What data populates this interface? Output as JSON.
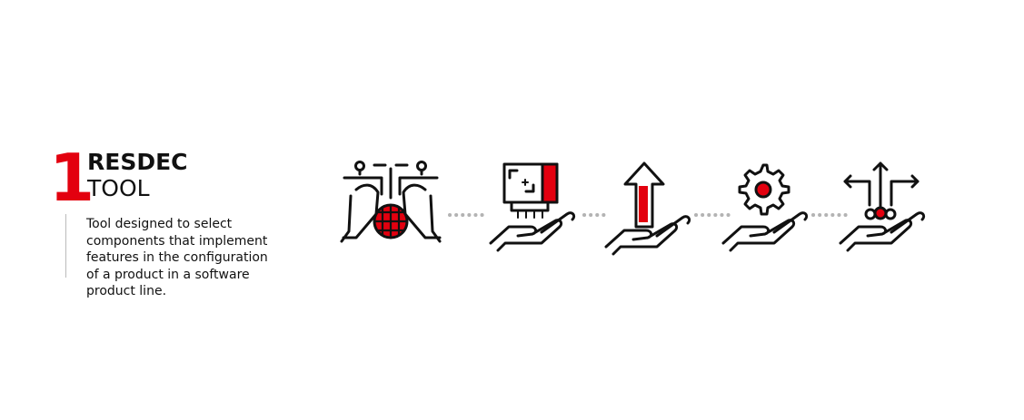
{
  "step": {
    "number": "1",
    "title_line1": "RESDEC",
    "title_line2": "TOOL"
  },
  "description_lines": [
    "Tool designed to select",
    "components that implement",
    "features in the configuration",
    "of a product in a software",
    "product line."
  ],
  "icons": [
    "hands-globe-circuit-icon",
    "hand-screen-icon",
    "hand-upload-arrow-icon",
    "hand-gear-icon",
    "hand-options-icon"
  ],
  "colors": {
    "accent": "#e3000f",
    "text": "#111111",
    "connector": "#b3b3b3",
    "rule": "#bbbbbb"
  }
}
